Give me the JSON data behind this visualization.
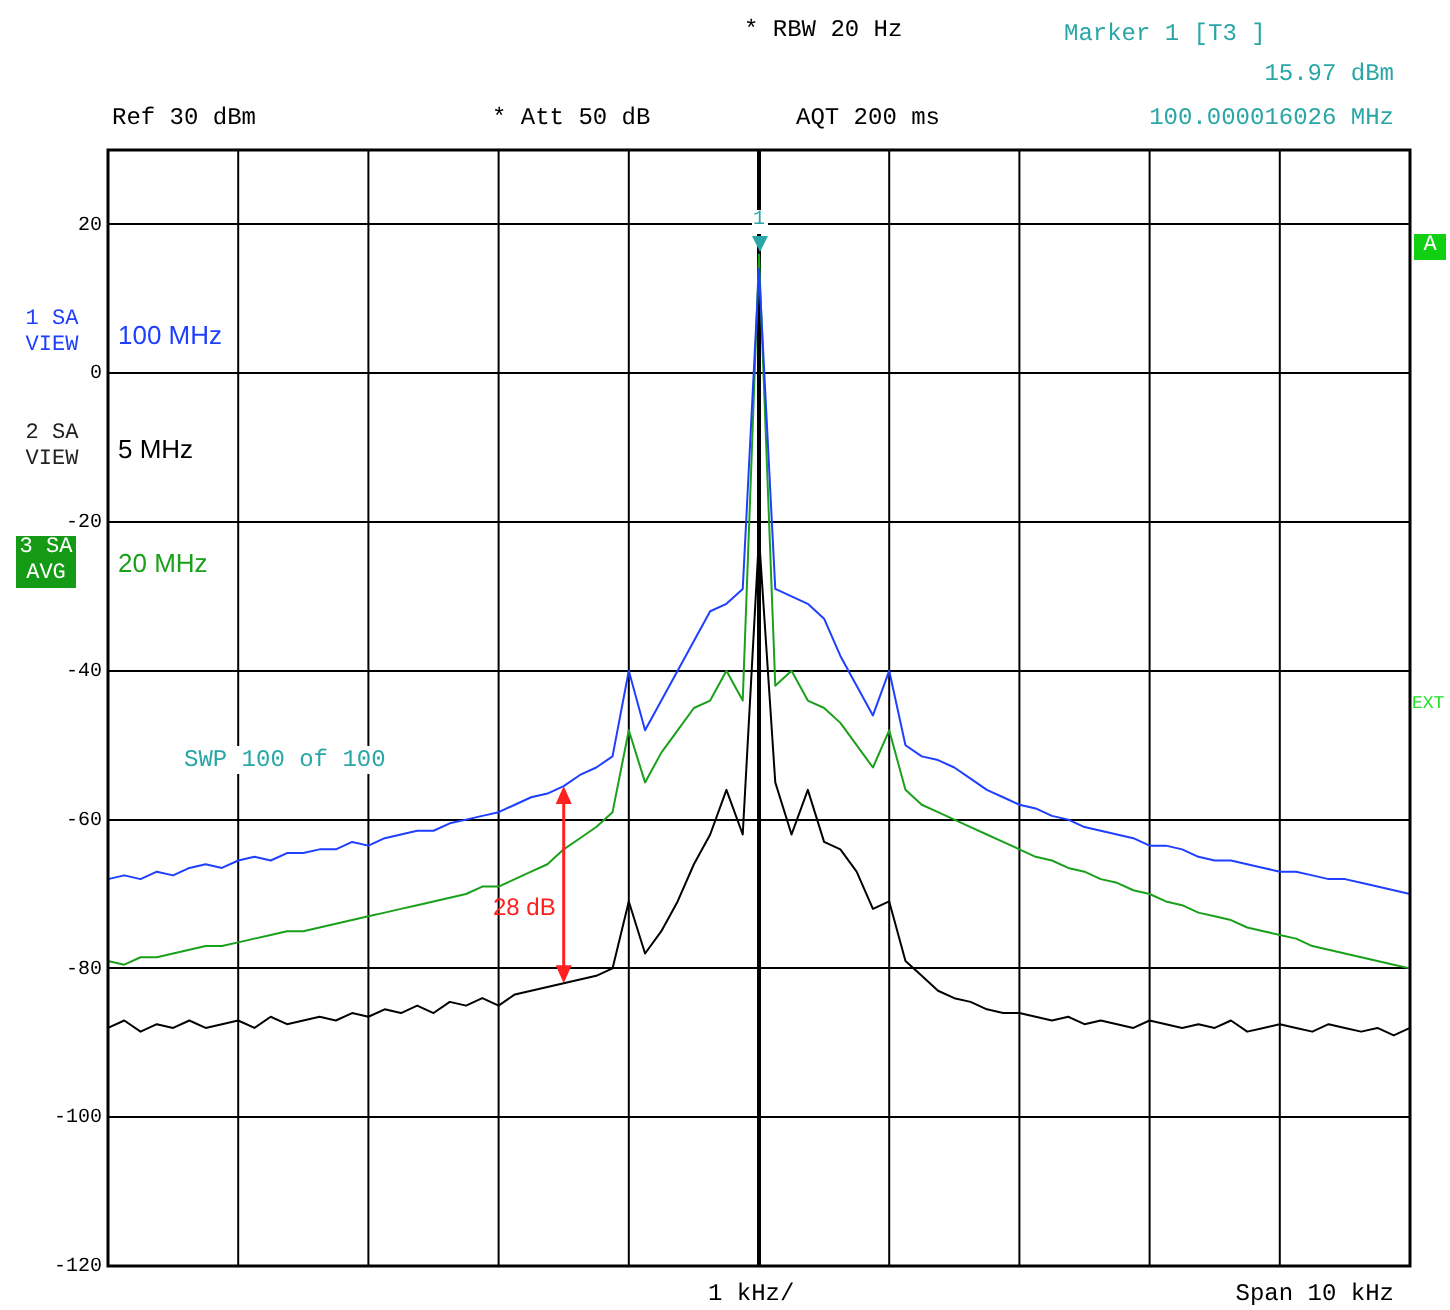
{
  "chart_data": {
    "type": "line",
    "categories": [
      null,
      null,
      null,
      null,
      null,
      null,
      null,
      null,
      null,
      null,
      null,
      null,
      null,
      null,
      null,
      null,
      null,
      null,
      null,
      null,
      null,
      null,
      null,
      null,
      null,
      null,
      null,
      null,
      null,
      null,
      null,
      null,
      null,
      null,
      null,
      null,
      null,
      null,
      null,
      null,
      null,
      null,
      null,
      null,
      null,
      null,
      null,
      null,
      null,
      null,
      null,
      null,
      null,
      null,
      null,
      null,
      null,
      null,
      null,
      null,
      null,
      null,
      null,
      null,
      null,
      null,
      null,
      null,
      null,
      null,
      null,
      null,
      null,
      null,
      null,
      null,
      null,
      null,
      null,
      null,
      null
    ],
    "series": [
      {
        "name": "100 MHz",
        "color": "#1f3fff",
        "values": [
          -68,
          -67.5,
          -68,
          -67,
          -67.5,
          -66.5,
          -66,
          -66.5,
          -65.5,
          -65,
          -65.5,
          -64.5,
          -64.5,
          -64,
          -64,
          -63,
          -63.5,
          -62.5,
          -62,
          -61.5,
          -61.5,
          -60.5,
          -60,
          -59.5,
          -59,
          -58,
          -57,
          -56.5,
          -55.5,
          -54,
          -53,
          -51.5,
          -40,
          -48,
          -44,
          -40,
          -36,
          -32,
          -31,
          -29,
          14,
          -29,
          -30,
          -31,
          -33,
          -38,
          -42,
          -46,
          -40,
          -50,
          -51.5,
          -52,
          -53,
          -54.5,
          -56,
          -57,
          -58,
          -58.5,
          -59.5,
          -60,
          -61,
          -61.5,
          -62,
          -62.5,
          -63.5,
          -63.5,
          -64,
          -65,
          -65.5,
          -65.5,
          -66,
          -66.5,
          -67,
          -67,
          -67.5,
          -68,
          -68,
          -68.5,
          -69,
          -69.5,
          -70
        ]
      },
      {
        "name": "5 MHz",
        "color": "#000000",
        "values": [
          -88,
          -87,
          -88.5,
          -87.5,
          -88,
          -87,
          -88,
          -87.5,
          -87,
          -88,
          -86.5,
          -87.5,
          -87,
          -86.5,
          -87,
          -86,
          -86.5,
          -85.5,
          -86,
          -85,
          -86,
          -84.5,
          -85,
          -84,
          -85,
          -83.5,
          -83,
          -82.5,
          -82,
          -81.5,
          -81,
          -80,
          -71,
          -78,
          -75,
          -71,
          -66,
          -62,
          -56,
          -62,
          -22,
          -55,
          -62,
          -56,
          -63,
          -64,
          -67,
          -72,
          -71,
          -79,
          -81,
          -83,
          -84,
          -84.5,
          -85.5,
          -86,
          -86,
          -86.5,
          -87,
          -86.5,
          -87.5,
          -87,
          -87.5,
          -88,
          -87,
          -87.5,
          -88,
          -87.5,
          -88,
          -87,
          -88.5,
          -88,
          -87.5,
          -88,
          -88.5,
          -87.5,
          -88,
          -88.5,
          -88,
          -89,
          -88
        ]
      },
      {
        "name": "20 MHz",
        "color": "#1aa01a",
        "values": [
          -79,
          -79.5,
          -78.5,
          -78.5,
          -78,
          -77.5,
          -77,
          -77,
          -76.5,
          -76,
          -75.5,
          -75,
          -75,
          -74.5,
          -74,
          -73.5,
          -73,
          -72.5,
          -72,
          -71.5,
          -71,
          -70.5,
          -70,
          -69,
          -69,
          -68,
          -67,
          -66,
          -64,
          -62.5,
          -61,
          -59,
          -48,
          -55,
          -51,
          -48,
          -45,
          -44,
          -40,
          -44,
          15.97,
          -42,
          -40,
          -44,
          -45,
          -47,
          -50,
          -53,
          -48,
          -56,
          -58,
          -59,
          -60,
          -61,
          -62,
          -63,
          -64,
          -65,
          -65.5,
          -66.5,
          -67,
          -68,
          -68.5,
          -69.5,
          -70,
          -71,
          -71.5,
          -72.5,
          -73,
          -73.5,
          -74.5,
          -75,
          -75.5,
          -76,
          -77,
          -77.5,
          -78,
          -78.5,
          -79,
          -79.5,
          -80
        ]
      }
    ],
    "ylim": [
      -120,
      30
    ],
    "yticks": [
      -120,
      -100,
      -80,
      -60,
      -40,
      -20,
      0,
      20
    ],
    "tick_labels": "y",
    "grid": true,
    "marker": "none",
    "line_style": "solid",
    "annotations": [
      "* RBW 20 Hz",
      "Marker 1 [T3 ]",
      "15.97 dBm",
      "Ref 30 dBm",
      "* Att 50 dB",
      "AQT 200 ms",
      "100.000016026 MHz",
      "1 SA VIEW",
      "2 SA VIEW",
      "3 SA AVG",
      "A",
      "EXT",
      "SWP 100 of 100",
      "1 kHz/",
      "Span 10 kHz",
      "28 dB",
      "1"
    ]
  }
}
